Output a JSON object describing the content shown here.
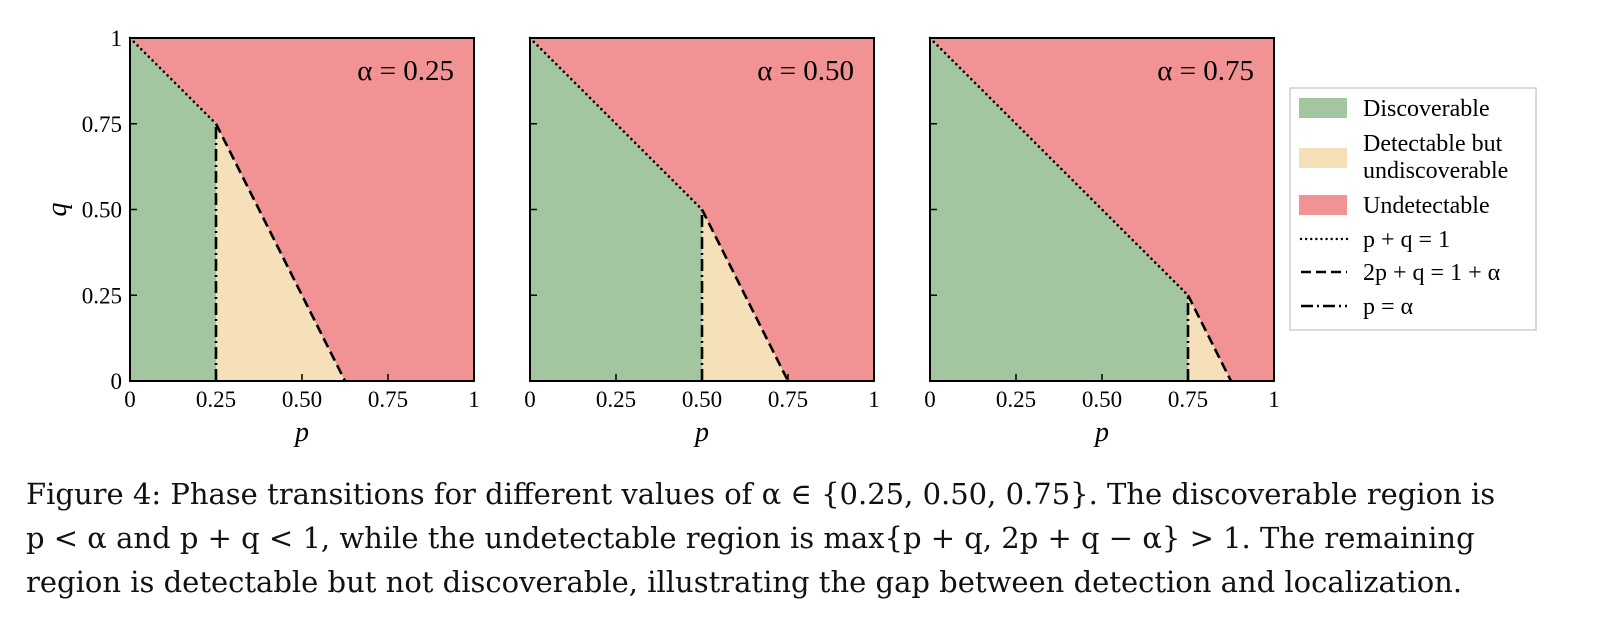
{
  "chart_data": [
    {
      "type": "area",
      "panel_label": "α = 0.25",
      "alpha": 0.25,
      "xlabel": "p",
      "ylabel": "q",
      "xlim": [
        0,
        1
      ],
      "ylim": [
        0,
        1
      ],
      "x_ticks": [
        "0",
        "0.25",
        "0.50",
        "0.75",
        "1"
      ],
      "y_ticks": [
        "0",
        "0.25",
        "0.50",
        "0.75",
        "1"
      ],
      "regions": [
        {
          "name": "Discoverable",
          "polygon": [
            [
              0,
              0
            ],
            [
              0.25,
              0
            ],
            [
              0.25,
              0.75
            ],
            [
              0,
              1
            ]
          ]
        },
        {
          "name": "Detectable but undiscoverable",
          "polygon": [
            [
              0.25,
              0
            ],
            [
              0.625,
              0
            ],
            [
              0.25,
              0.75
            ]
          ]
        },
        {
          "name": "Undetectable",
          "polygon": [
            [
              0,
              1
            ],
            [
              0.25,
              0.75
            ],
            [
              0.625,
              0
            ],
            [
              1,
              0
            ],
            [
              1,
              1
            ]
          ]
        }
      ]
    },
    {
      "type": "area",
      "panel_label": "α = 0.50",
      "alpha": 0.5,
      "xlabel": "p",
      "xlim": [
        0,
        1
      ],
      "ylim": [
        0,
        1
      ],
      "x_ticks": [
        "0",
        "0.25",
        "0.50",
        "0.75",
        "1"
      ],
      "regions": [
        {
          "name": "Discoverable",
          "polygon": [
            [
              0,
              0
            ],
            [
              0.5,
              0
            ],
            [
              0.5,
              0.5
            ],
            [
              0,
              1
            ]
          ]
        },
        {
          "name": "Detectable but undiscoverable",
          "polygon": [
            [
              0.5,
              0
            ],
            [
              0.75,
              0
            ],
            [
              0.5,
              0.5
            ]
          ]
        },
        {
          "name": "Undetectable",
          "polygon": [
            [
              0,
              1
            ],
            [
              0.5,
              0.5
            ],
            [
              0.75,
              0
            ],
            [
              1,
              0
            ],
            [
              1,
              1
            ]
          ]
        }
      ]
    },
    {
      "type": "area",
      "panel_label": "α = 0.75",
      "alpha": 0.75,
      "xlabel": "p",
      "xlim": [
        0,
        1
      ],
      "ylim": [
        0,
        1
      ],
      "x_ticks": [
        "0",
        "0.25",
        "0.50",
        "0.75",
        "1"
      ],
      "regions": [
        {
          "name": "Discoverable",
          "polygon": [
            [
              0,
              0
            ],
            [
              0.75,
              0
            ],
            [
              0.75,
              0.25
            ],
            [
              0,
              1
            ]
          ]
        },
        {
          "name": "Detectable but undiscoverable",
          "polygon": [
            [
              0.75,
              0
            ],
            [
              0.875,
              0
            ],
            [
              0.75,
              0.25
            ]
          ]
        },
        {
          "name": "Undetectable",
          "polygon": [
            [
              0,
              1
            ],
            [
              0.75,
              0.25
            ],
            [
              0.875,
              0
            ],
            [
              1,
              0
            ],
            [
              1,
              1
            ]
          ]
        }
      ]
    }
  ],
  "legend": {
    "placement": "right",
    "items": [
      {
        "label": "Discoverable",
        "kind": "patch",
        "color": "#a3c6a1"
      },
      {
        "label": "Detectable but undiscoverable",
        "kind": "patch",
        "color": "#f6e0ba"
      },
      {
        "label": "Undetectable",
        "kind": "patch",
        "color": "#f19394"
      },
      {
        "label": "p + q = 1",
        "kind": "line",
        "dash": "dotted"
      },
      {
        "label": "2p + q = 1 + α",
        "kind": "line",
        "dash": "dashed"
      },
      {
        "label": "p = α",
        "kind": "line",
        "dash": "dashdot"
      }
    ]
  },
  "colors": {
    "discoverable": "#a3c6a1",
    "detectable": "#f6e0ba",
    "undetectable": "#f19394",
    "lines": "#000000"
  },
  "caption": {
    "line1": "Figure 4: Phase transitions for different values of α ∈ {0.25, 0.50, 0.75}. The discoverable region is",
    "line2": "p < α and p + q < 1, while the undetectable region is max{p + q, 2p + q − α} > 1. The remaining",
    "line3": "region is detectable but not discoverable, illustrating the gap between detection and localization."
  }
}
